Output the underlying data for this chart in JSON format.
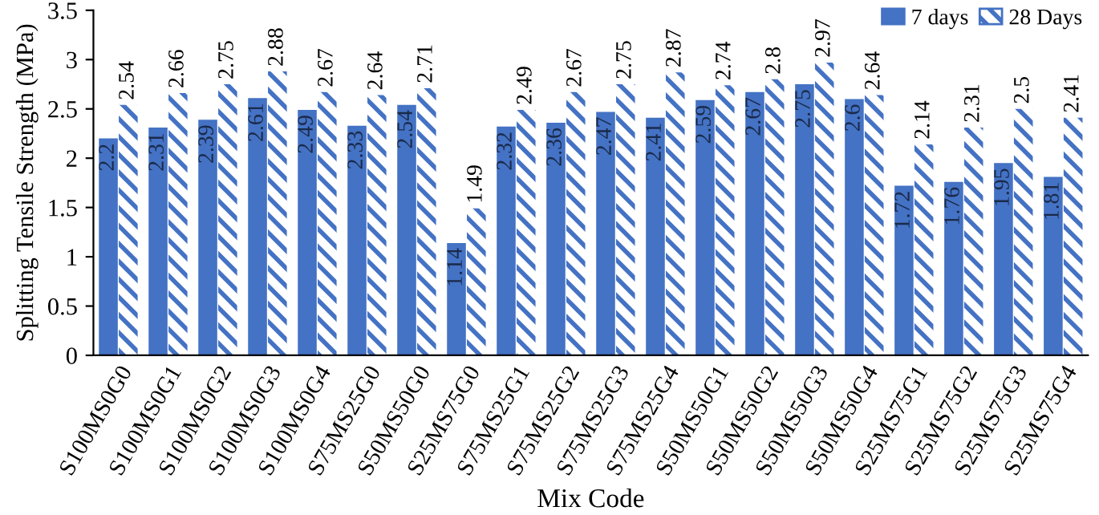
{
  "chart_data": {
    "type": "bar",
    "xlabel": "Mix Code",
    "ylabel": "Splitting Tensile Strength (MPa)",
    "categories": [
      "S100MS0G0",
      "S100MS0G1",
      "S100MS0G2",
      "S100MS0G3",
      "S100MS0G4",
      "S75MS25G0",
      "S50MS50G0",
      "S25MS75G0",
      "S75MS25G1",
      "S75MS25G2",
      "S75MS25G3",
      "S75MS25G4",
      "S50MS50G1",
      "S50MS50G2",
      "S50MS50G3",
      "S50MS50G4",
      "S25MS75G1",
      "S25MS75G2",
      "S25MS75G3",
      "S25MS75G4"
    ],
    "series": [
      {
        "name": "7 days",
        "color": "#4472c4",
        "values": [
          2.2,
          2.31,
          2.39,
          2.61,
          2.49,
          2.33,
          2.54,
          1.14,
          2.32,
          2.36,
          2.47,
          2.41,
          2.59,
          2.67,
          2.75,
          2.6,
          1.72,
          1.76,
          1.95,
          1.81
        ]
      },
      {
        "name": "28 Days",
        "color": "#4472c4",
        "values": [
          2.54,
          2.66,
          2.75,
          2.88,
          2.67,
          2.64,
          2.71,
          1.49,
          2.49,
          2.67,
          2.75,
          2.87,
          2.74,
          2.8,
          2.97,
          2.64,
          2.14,
          2.31,
          2.5,
          2.41
        ]
      }
    ],
    "ylim": [
      0,
      3.5
    ],
    "yticks": [
      0,
      0.5,
      1,
      1.5,
      2,
      2.5,
      3,
      3.5
    ],
    "data_labels": true,
    "legend": "top right",
    "grid": false
  }
}
